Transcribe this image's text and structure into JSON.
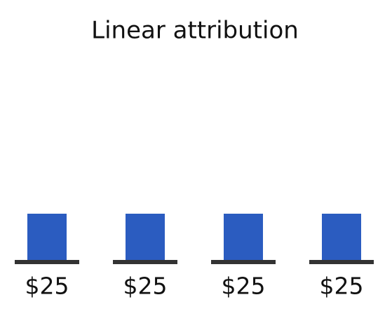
{
  "chart_data": {
    "type": "bar",
    "title": "Linear attribution",
    "values": [
      25,
      25,
      25,
      25
    ],
    "value_labels": [
      "$25",
      "$25",
      "$25",
      "$25"
    ],
    "color": "#2b5cc0"
  }
}
